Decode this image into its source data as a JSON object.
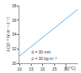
{
  "chart_data": {
    "type": "line",
    "xlabel": "T (°C)",
    "ylabel": "λ (10⁻³ W·m⁻¹·K⁻¹)",
    "annotations": [
      "d = 30 mm",
      "ρ = 30 kg·m⁻³"
    ],
    "x": [
      10,
      15,
      20,
      25,
      30,
      35
    ],
    "values": [
      31,
      32.3,
      33.6,
      34.9,
      36.2,
      37.5
    ],
    "color": "#5bb4e5",
    "xlim": [
      10,
      35
    ],
    "xticks": [
      10,
      15,
      20,
      25,
      30
    ],
    "ylim": [
      30,
      38
    ],
    "yticks": [
      30,
      32,
      34,
      36,
      38
    ],
    "grid": false
  }
}
